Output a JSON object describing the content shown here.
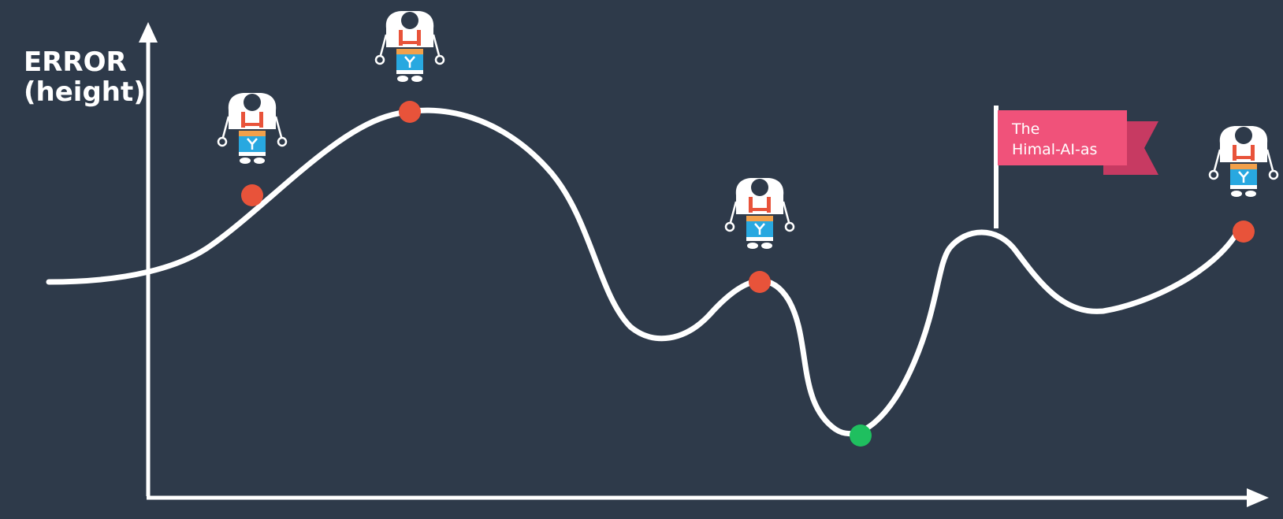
{
  "diagram": {
    "y_axis_label_line1": "ERROR",
    "y_axis_label_line2": "(height)",
    "flag_label_line1": "The",
    "flag_label_line2": "Himal-AI-as",
    "colors": {
      "background": "#2e3a4a",
      "curve": "#ffffff",
      "axis": "#ffffff",
      "robot_point": "#e8533a",
      "minimum_point": "#1fbf5f",
      "flag": "#f0527a",
      "flag_shadow": "#c73a62",
      "robot_body": "#ffffff",
      "robot_screen": "#28a8e0",
      "robot_strap": "#e8533a",
      "robot_belt": "#f2a04a",
      "robot_head": "#2e3a4a"
    },
    "markers": [
      {
        "name": "robot-1",
        "type": "robot"
      },
      {
        "name": "robot-2",
        "type": "robot"
      },
      {
        "name": "robot-3",
        "type": "robot"
      },
      {
        "name": "robot-4",
        "type": "robot"
      },
      {
        "name": "global-minimum",
        "type": "point"
      }
    ]
  }
}
